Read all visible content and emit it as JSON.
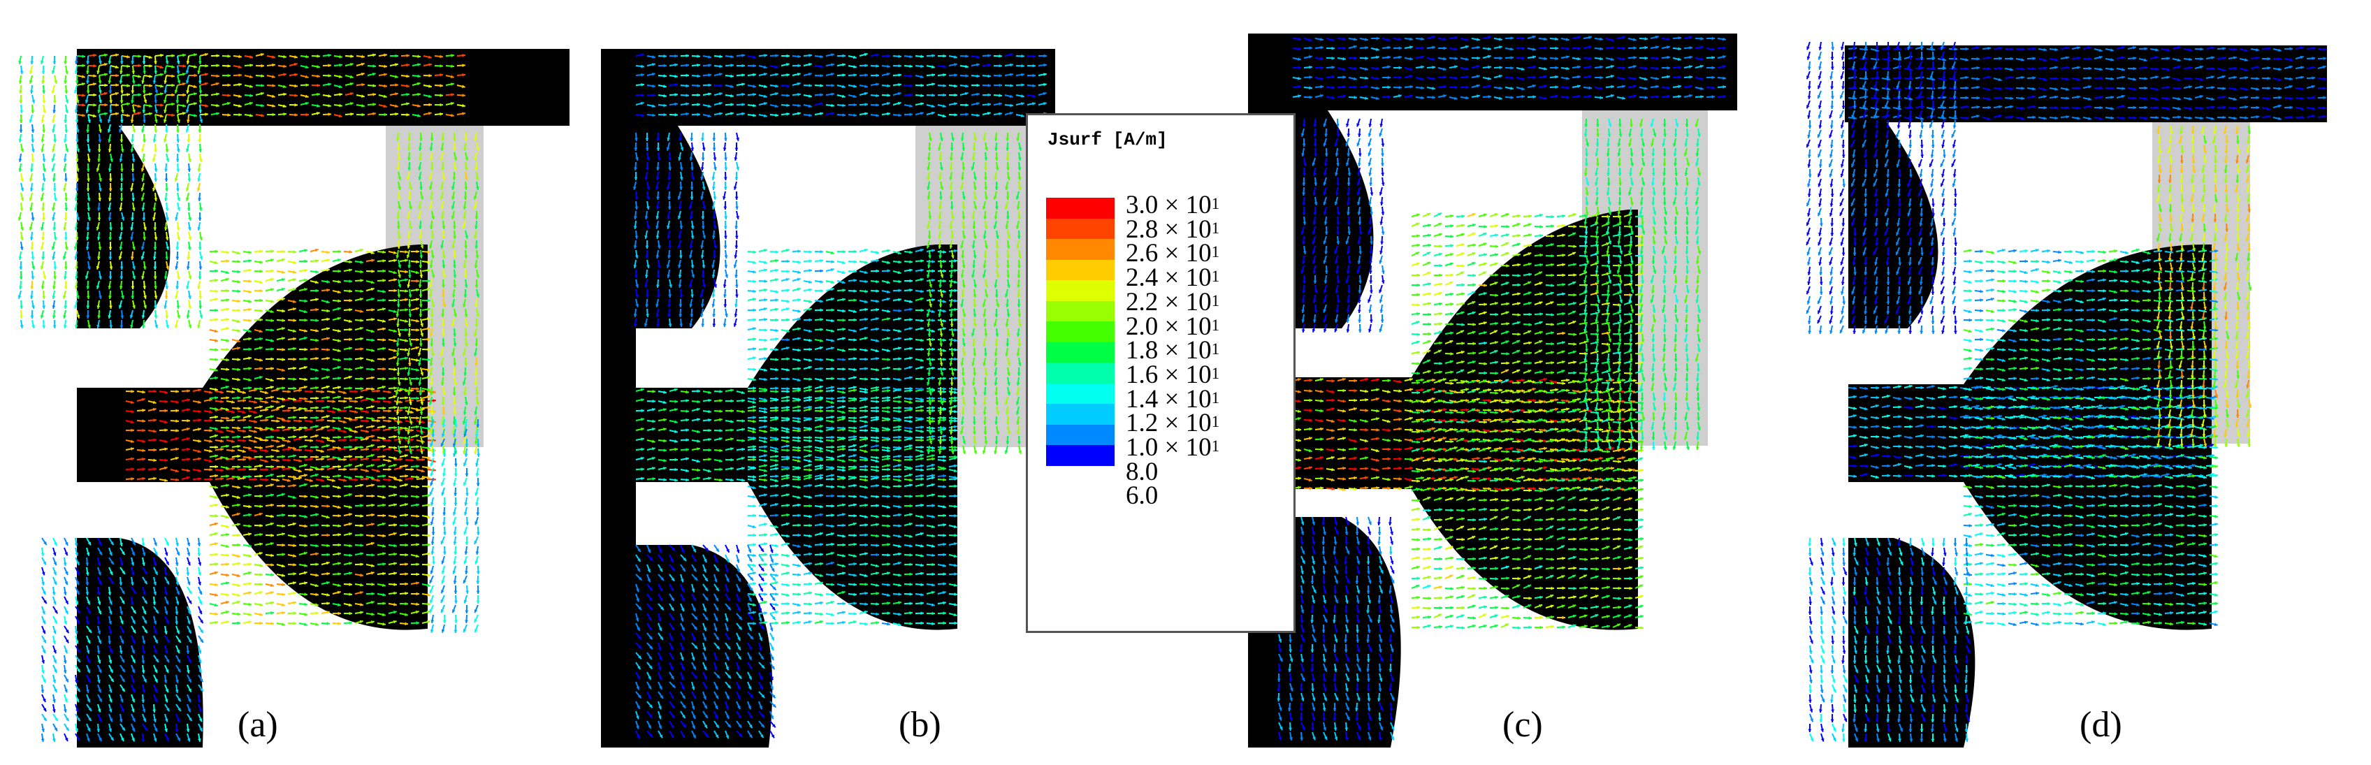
{
  "panels": [
    {
      "label": "(a)"
    },
    {
      "label": "(b)"
    },
    {
      "label": "(c)"
    },
    {
      "label": "(d)"
    }
  ],
  "legend": {
    "title": "Jsurf [A/m]",
    "entries": [
      {
        "mantissa": "3.0 × 10",
        "exp": "1",
        "color": "#ff0000"
      },
      {
        "mantissa": "2.8 × 10",
        "exp": "1",
        "color": "#ff4400"
      },
      {
        "mantissa": "2.6 × 10",
        "exp": "1",
        "color": "#ff8800"
      },
      {
        "mantissa": "2.4 × 10",
        "exp": "1",
        "color": "#ffcc00"
      },
      {
        "mantissa": "2.2 × 10",
        "exp": "1",
        "color": "#ddff00"
      },
      {
        "mantissa": "2.0 × 10",
        "exp": "1",
        "color": "#99ff00"
      },
      {
        "mantissa": "1.8 × 10",
        "exp": "1",
        "color": "#44ff00"
      },
      {
        "mantissa": "1.6 × 10",
        "exp": "1",
        "color": "#00ff44"
      },
      {
        "mantissa": "1.4 × 10",
        "exp": "1",
        "color": "#00ffaa"
      },
      {
        "mantissa": "1.2 × 10",
        "exp": "1",
        "color": "#00ffee"
      },
      {
        "mantissa": "1.0 × 10",
        "exp": "1",
        "color": "#00ccff"
      },
      {
        "mantissa": "8.0",
        "exp": "",
        "color": "#0088ff"
      },
      {
        "mantissa": "6.0",
        "exp": "",
        "color": "#0000ff"
      }
    ]
  }
}
